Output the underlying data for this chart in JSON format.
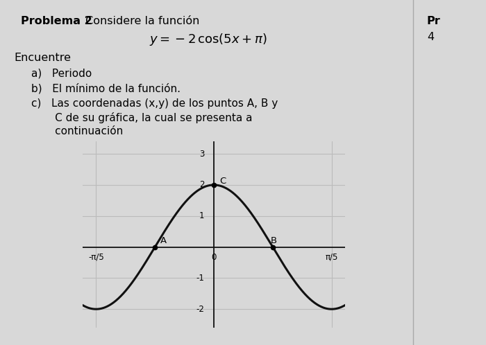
{
  "bg_color": "#d8d8d8",
  "text_color": "#000000",
  "title_bold": "Problema 2",
  "title_normal": " Considere la función",
  "equation": "$y = -2\\,\\cos(5x + \\pi)$",
  "find_text": "Encuentre",
  "item_a": "a)   Periodo",
  "item_b": "b)   El mínimo de la función.",
  "item_c1": "c)   Las coordenadas (x,y) de los puntos A, B y",
  "item_c2": "       C de su gráfica, la cual se presenta a",
  "item_c3": "       continuación",
  "right_pr": "Pr",
  "right_4": "4",
  "graph": {
    "xlim": [
      -0.7,
      0.7
    ],
    "ylim": [
      -2.6,
      3.4
    ],
    "xtick_labels": [
      "-π/5",
      "0",
      "π/5"
    ],
    "xtick_vals": [
      -0.6283185307,
      0,
      0.6283185307
    ],
    "yticks": [
      -2,
      -1,
      1,
      2,
      3
    ],
    "ytick_labels": [
      "-2",
      "-1",
      "1",
      "2",
      "3"
    ],
    "point_A": [
      -0.3141592653589793,
      0
    ],
    "point_B": [
      0.3141592653589793,
      0
    ],
    "point_C": [
      0,
      2
    ],
    "curve_color": "#111111",
    "grid_color": "#bbbbbb",
    "axes_color": "#111111"
  }
}
